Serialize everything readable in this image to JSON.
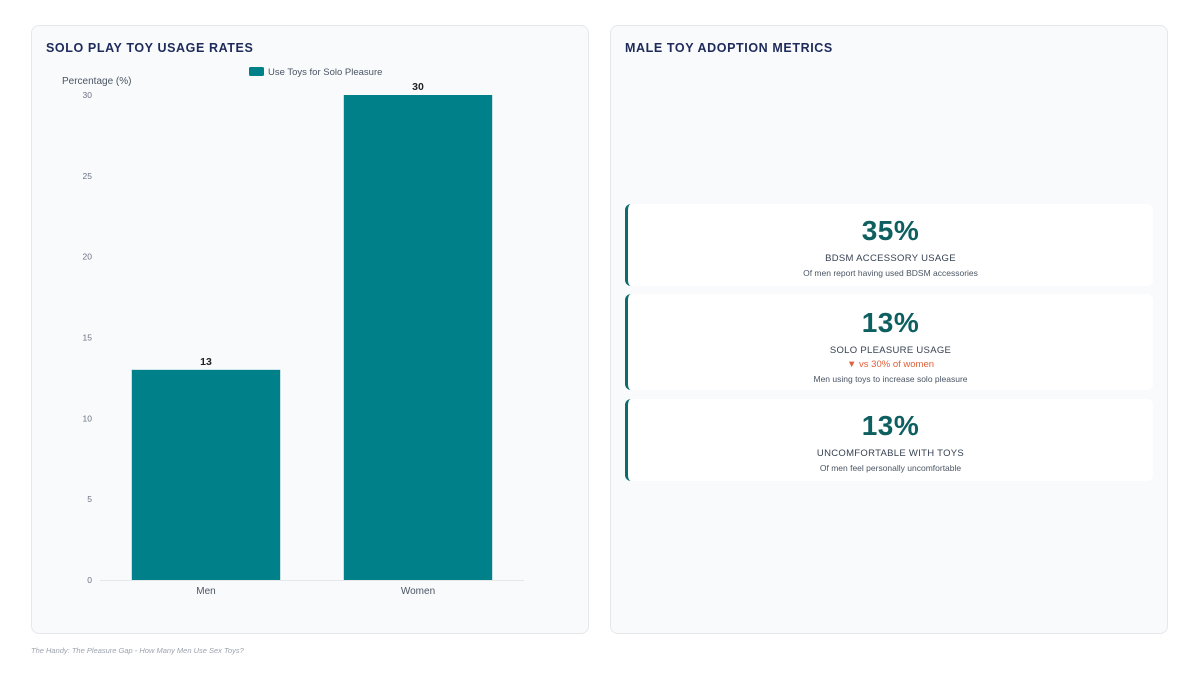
{
  "left_panel": {
    "title": "SOLO PLAY TOY USAGE RATES"
  },
  "chart_data": {
    "type": "bar",
    "categories": [
      "Men",
      "Women"
    ],
    "series": [
      {
        "name": "Use Toys for Solo Pleasure",
        "values": [
          13,
          30
        ],
        "color": "#00818a"
      }
    ],
    "data_labels": [
      "13",
      "30"
    ],
    "ylabel": "Percentage (%)",
    "xlabel": "",
    "ylim": [
      0,
      30
    ],
    "yticks": [
      0,
      5,
      10,
      15,
      20,
      25,
      30
    ],
    "grid": false,
    "legend_position": "top"
  },
  "right_panel": {
    "title": "MALE TOY ADOPTION METRICS",
    "cards": [
      {
        "value": "35%",
        "label": "BDSM ACCESSORY USAGE",
        "description": "Of men report having used BDSM accessories"
      },
      {
        "value": "13%",
        "label": "SOLO PLEASURE USAGE",
        "comparison": "▼ vs 30% of women",
        "description": "Men using toys to increase solo pleasure"
      },
      {
        "value": "13%",
        "label": "UNCOMFORTABLE WITH TOYS",
        "description": "Of men feel personally uncomfortable"
      }
    ]
  },
  "accent_color": "#0e5f5f",
  "footer": {
    "source": "The Handy: The Pleasure Gap - How Many Men Use Sex Toys?"
  }
}
